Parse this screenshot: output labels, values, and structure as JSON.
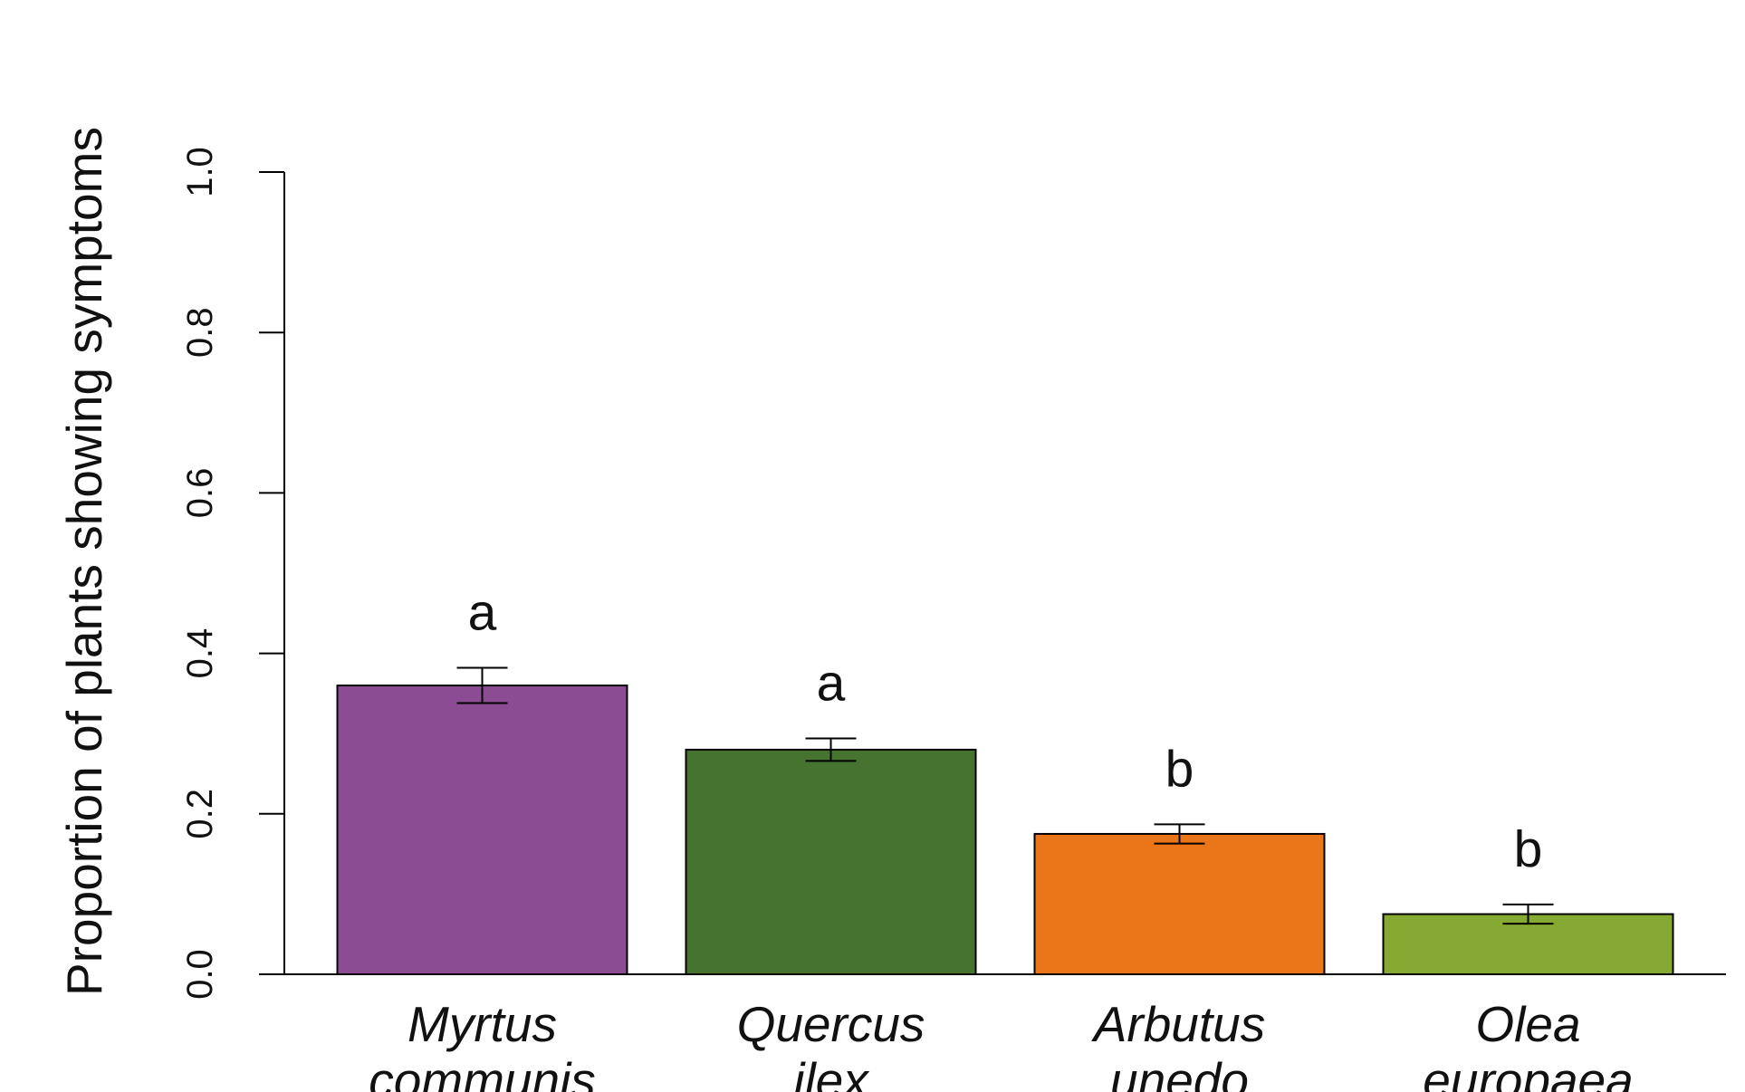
{
  "chart_data": {
    "type": "bar",
    "y_label": "Proportion of plants showing symptoms",
    "categories": [
      [
        "Myrtus",
        "communis"
      ],
      [
        "Quercus",
        "ilex"
      ],
      [
        "Arbutus",
        "unedo"
      ],
      [
        "Olea",
        "europaea"
      ]
    ],
    "values": [
      0.36,
      0.28,
      0.175,
      0.075
    ],
    "errors": [
      0.022,
      0.014,
      0.012,
      0.012
    ],
    "annotations": [
      "a",
      "a",
      "b",
      "b"
    ],
    "colors": [
      "#8b4c93",
      "#477330",
      "#eb7519",
      "#86a934"
    ],
    "ylim": [
      0,
      1
    ],
    "yticks": [
      {
        "value": 0,
        "label": "0.0"
      },
      {
        "value": 0.2,
        "label": "0.2"
      },
      {
        "value": 0.4,
        "label": "0.4"
      },
      {
        "value": 0.6,
        "label": "0.6"
      },
      {
        "value": 0.8,
        "label": "0.8"
      },
      {
        "value": 1,
        "label": "1.0"
      }
    ]
  }
}
